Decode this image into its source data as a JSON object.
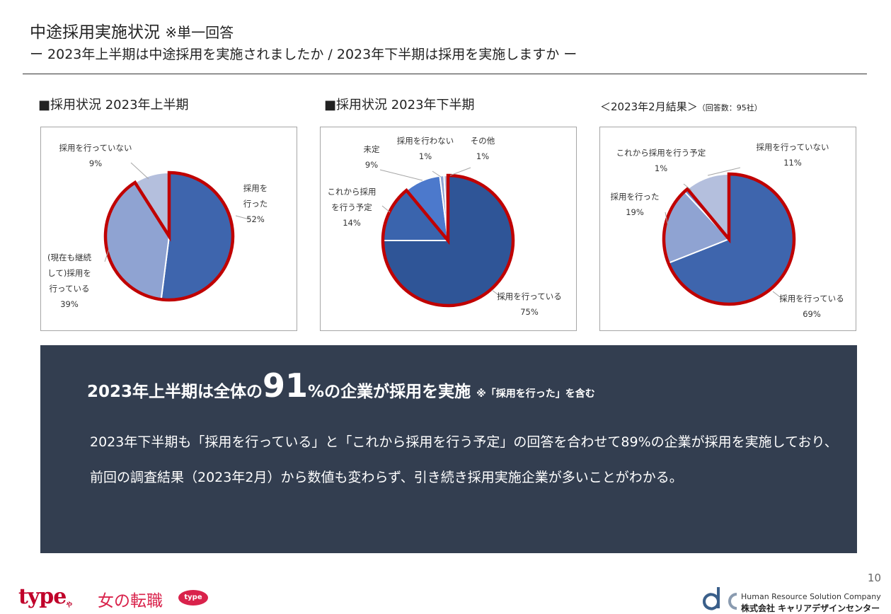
{
  "header": {
    "title": "中途採用実施状況",
    "title_note": "※単一回答",
    "subtitle": "ー 2023年上半期は中途採用を実施されましたか / 2023年下半期は採用を実施しますか ー"
  },
  "charts": {
    "c1_heading": "■採用状況 2023年上半期",
    "c2_heading": "■採用状況 2023年下半期",
    "c3_heading": "＜2023年2月結果＞",
    "c3_heading_note": "（回答数：95社）"
  },
  "chart_data": [
    {
      "type": "pie",
      "title": "■採用状況 2023年上半期",
      "categories": [
        "採用を行った",
        "(現在も継続して)採用を行っている",
        "採用を行っていない"
      ],
      "values": [
        52,
        39,
        9
      ],
      "labels": [
        {
          "lines": [
            "採用を",
            "行った"
          ],
          "pct": "52%"
        },
        {
          "lines": [
            "(現在も継続",
            "して)採用を",
            "行っている"
          ],
          "pct": "39%"
        },
        {
          "lines": [
            "採用を行っていない"
          ],
          "pct": "9%"
        }
      ],
      "colors": [
        "#3e65ad",
        "#8fa3d2",
        "#b4bfdd"
      ],
      "highlight": [
        0,
        1
      ]
    },
    {
      "type": "pie",
      "title": "■採用状況 2023年下半期",
      "categories": [
        "採用を行っている",
        "これから採用を行う予定",
        "未定",
        "採用を行わない",
        "その他"
      ],
      "values": [
        75,
        14,
        9,
        1,
        1
      ],
      "labels": [
        {
          "lines": [
            "採用を行っている"
          ],
          "pct": "75%"
        },
        {
          "lines": [
            "これから採用",
            "を行う予定"
          ],
          "pct": "14%"
        },
        {
          "lines": [
            "未定"
          ],
          "pct": "9%"
        },
        {
          "lines": [
            "採用を行わない"
          ],
          "pct": "1%"
        },
        {
          "lines": [
            "その他"
          ],
          "pct": "1%"
        }
      ],
      "colors": [
        "#2f5597",
        "#3a64ad",
        "#4c79cc",
        "#8fa3d2",
        "#b4bfdd"
      ],
      "highlight": [
        0,
        1
      ]
    },
    {
      "type": "pie",
      "title": "＜2023年2月結果＞",
      "categories": [
        "採用を行っている",
        "採用を行った",
        "これから採用を行う予定",
        "採用を行っていない"
      ],
      "values": [
        69,
        19,
        1,
        11
      ],
      "labels": [
        {
          "lines": [
            "採用を行っている"
          ],
          "pct": "69%"
        },
        {
          "lines": [
            "採用を行った"
          ],
          "pct": "19%"
        },
        {
          "lines": [
            "これから採用を行う予定"
          ],
          "pct": "1%"
        },
        {
          "lines": [
            "採用を行っていない"
          ],
          "pct": "11%"
        }
      ],
      "colors": [
        "#3e65ad",
        "#8fa3d2",
        "#6f86c4",
        "#b4bfdd"
      ],
      "highlight": [
        0,
        1,
        2
      ]
    }
  ],
  "summary": {
    "headline_pre": "2023年上半期は全体の",
    "headline_big": "91",
    "headline_post": "%の企業が採用を実施",
    "headline_note": "※「採用を行った」を含む",
    "body": "2023年下半期も「採用を行っている」と「これから採用を行う予定」の回答を合わせて89%の企業が採用を実施しており、前回の調査結果（2023年2月）から数値も変わらず、引き続き採用実施企業が多いことがわかる。"
  },
  "footer": {
    "page_number": "10",
    "brand_type": "type",
    "brand_type_small": "や",
    "brand_onna": "女の転職",
    "brand_badge": "type",
    "company_en": "Human Resource Solution Company",
    "company_jp": "株式会社 キャリアデザインセンター"
  },
  "colors": {
    "highlight_outline": "#c00000",
    "summary_bg": "#333e50",
    "brand_red": "#c0002a"
  }
}
